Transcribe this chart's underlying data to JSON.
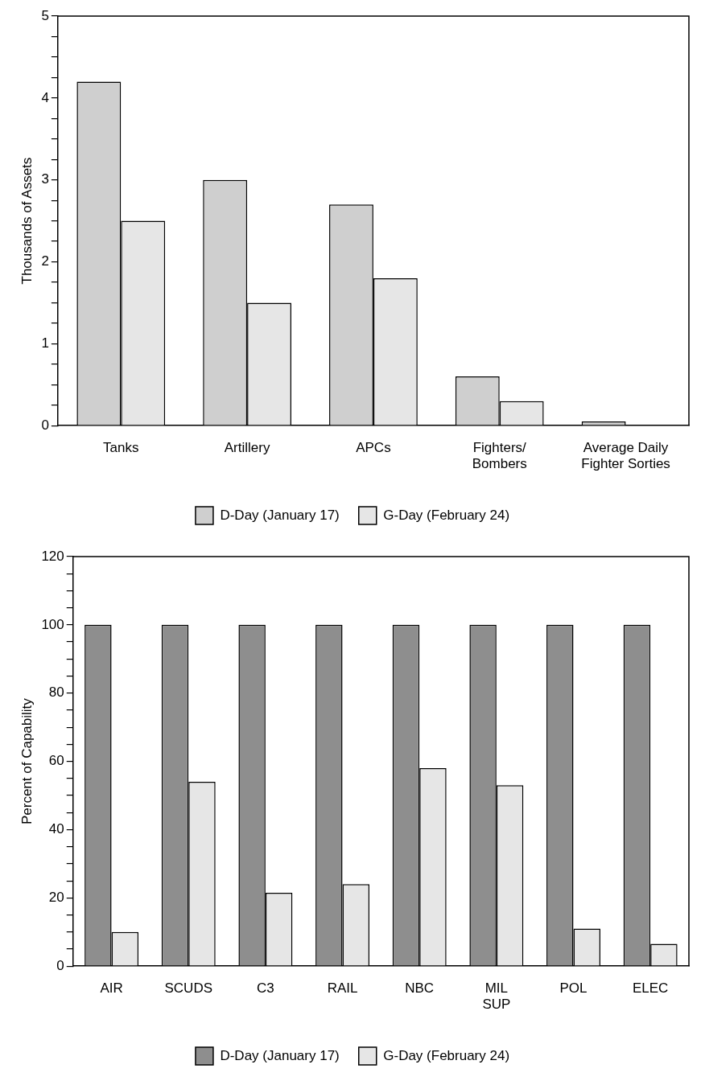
{
  "chart_data": [
    {
      "type": "bar",
      "ylabel": "Thousands of Assets",
      "categories": [
        "Tanks",
        "Artillery",
        "APCs",
        "Fighters/\nBombers",
        "Average Daily\nFighter Sorties"
      ],
      "series": [
        {
          "name": "D-Day (January 17)",
          "color": "#cfcfcf",
          "values": [
            4.2,
            3.0,
            2.7,
            0.6,
            0.05
          ]
        },
        {
          "name": "G-Day (February 24)",
          "color": "#e6e6e6",
          "values": [
            2.5,
            1.5,
            1.8,
            0.3,
            0
          ]
        }
      ],
      "ylim": [
        0,
        5
      ],
      "yticks": [
        0,
        {
          "value": 0.25,
          "label": null
        },
        {
          "value": 0.5,
          "label": null
        },
        {
          "value": 0.75,
          "label": null
        },
        1,
        {
          "value": 1.25,
          "label": null
        },
        {
          "value": 1.5,
          "label": null
        },
        {
          "value": 1.75,
          "label": null
        },
        2,
        {
          "value": 2.25,
          "label": null
        },
        {
          "value": 2.5,
          "label": null
        },
        {
          "value": 2.75,
          "label": null
        },
        3,
        {
          "value": 3.25,
          "label": null
        },
        {
          "value": 3.5,
          "label": null
        },
        {
          "value": 3.75,
          "label": null
        },
        4,
        {
          "value": 4.25,
          "label": null
        },
        {
          "value": 4.5,
          "label": null
        },
        {
          "value": 4.75,
          "label": null
        },
        5
      ],
      "grid": false,
      "legend": "bottom"
    },
    {
      "type": "bar",
      "ylabel": "Percent of Capability",
      "categories": [
        "AIR",
        "SCUDS",
        "C3",
        "RAIL",
        "NBC",
        "MIL\nSUP",
        "POL",
        "ELEC"
      ],
      "series": [
        {
          "name": "D-Day (January 17)",
          "color": "#8e8e8e",
          "values": [
            100,
            100,
            100,
            100,
            100,
            100,
            100,
            100
          ]
        },
        {
          "name": "G-Day (February 24)",
          "color": "#e6e6e6",
          "values": [
            10,
            54,
            21.5,
            24,
            58,
            53,
            11,
            6.5
          ]
        }
      ],
      "ylim": [
        0,
        120
      ],
      "yticks": [
        0,
        {
          "value": 5,
          "label": null
        },
        {
          "value": 10,
          "label": null
        },
        {
          "value": 15,
          "label": null
        },
        20,
        {
          "value": 25,
          "label": null
        },
        {
          "value": 30,
          "label": null
        },
        {
          "value": 35,
          "label": null
        },
        40,
        {
          "value": 45,
          "label": null
        },
        {
          "value": 50,
          "label": null
        },
        {
          "value": 55,
          "label": null
        },
        60,
        {
          "value": 65,
          "label": null
        },
        {
          "value": 70,
          "label": null
        },
        {
          "value": 75,
          "label": null
        },
        80,
        {
          "value": 85,
          "label": null
        },
        {
          "value": 90,
          "label": null
        },
        {
          "value": 95,
          "label": null
        },
        100,
        {
          "value": 105,
          "label": null
        },
        {
          "value": 110,
          "label": null
        },
        {
          "value": 115,
          "label": null
        },
        120
      ],
      "grid": false,
      "legend": "bottom"
    }
  ]
}
